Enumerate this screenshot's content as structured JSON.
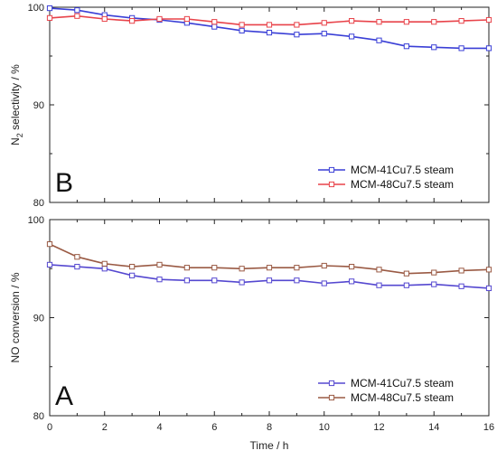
{
  "chart_data": [
    {
      "type": "line",
      "panel_label": "B",
      "ylabel_main": "N",
      "ylabel_sub": "2",
      "ylabel_rest": " selectivity / %",
      "xlim": [
        0,
        16
      ],
      "ylim": [
        80,
        100
      ],
      "yticks": [
        80,
        90,
        100
      ],
      "xticks": [
        0,
        2,
        4,
        6,
        8,
        10,
        12,
        14,
        16
      ],
      "show_xtick_labels": false,
      "legend_position": "bottom-right",
      "series": [
        {
          "name": "MCM-41Cu7.5 steam",
          "color": "#3a3fd6",
          "x": [
            0,
            1,
            2,
            3,
            4,
            5,
            6,
            7,
            8,
            9,
            10,
            11,
            12,
            13,
            14,
            15,
            16
          ],
          "y": [
            99.9,
            99.7,
            99.2,
            98.9,
            98.7,
            98.4,
            98.0,
            97.6,
            97.4,
            97.2,
            97.3,
            97.0,
            96.6,
            96.0,
            95.9,
            95.8,
            95.8
          ]
        },
        {
          "name": "MCM-48Cu7.5 steam",
          "color": "#e8434a",
          "x": [
            0,
            1,
            2,
            3,
            4,
            5,
            6,
            7,
            8,
            9,
            10,
            11,
            12,
            13,
            14,
            15,
            16
          ],
          "y": [
            98.9,
            99.1,
            98.8,
            98.6,
            98.8,
            98.8,
            98.5,
            98.2,
            98.2,
            98.2,
            98.4,
            98.6,
            98.5,
            98.5,
            98.5,
            98.6,
            98.7
          ]
        }
      ]
    },
    {
      "type": "line",
      "panel_label": "A",
      "ylabel": "NO conversion / %",
      "xlabel": "Time / h",
      "xlim": [
        0,
        16
      ],
      "ylim": [
        80,
        100
      ],
      "yticks": [
        80,
        90,
        100
      ],
      "xticks": [
        0,
        2,
        4,
        6,
        8,
        10,
        12,
        14,
        16
      ],
      "show_xtick_labels": true,
      "legend_position": "bottom-right",
      "series": [
        {
          "name": "MCM-41Cu7.5 steam",
          "color": "#5548d0",
          "x": [
            0,
            1,
            2,
            3,
            4,
            5,
            6,
            7,
            8,
            9,
            10,
            11,
            12,
            13,
            14,
            15,
            16
          ],
          "y": [
            95.4,
            95.2,
            95.0,
            94.3,
            93.9,
            93.8,
            93.8,
            93.6,
            93.8,
            93.8,
            93.5,
            93.7,
            93.3,
            93.3,
            93.4,
            93.2,
            93.0
          ]
        },
        {
          "name": "MCM-48Cu7.5 steam",
          "color": "#9a5a44",
          "x": [
            0,
            1,
            2,
            3,
            4,
            5,
            6,
            7,
            8,
            9,
            10,
            11,
            12,
            13,
            14,
            15,
            16
          ],
          "y": [
            97.5,
            96.2,
            95.5,
            95.2,
            95.4,
            95.1,
            95.1,
            95.0,
            95.1,
            95.1,
            95.3,
            95.2,
            94.9,
            94.5,
            94.6,
            94.8,
            94.9
          ]
        }
      ]
    }
  ]
}
